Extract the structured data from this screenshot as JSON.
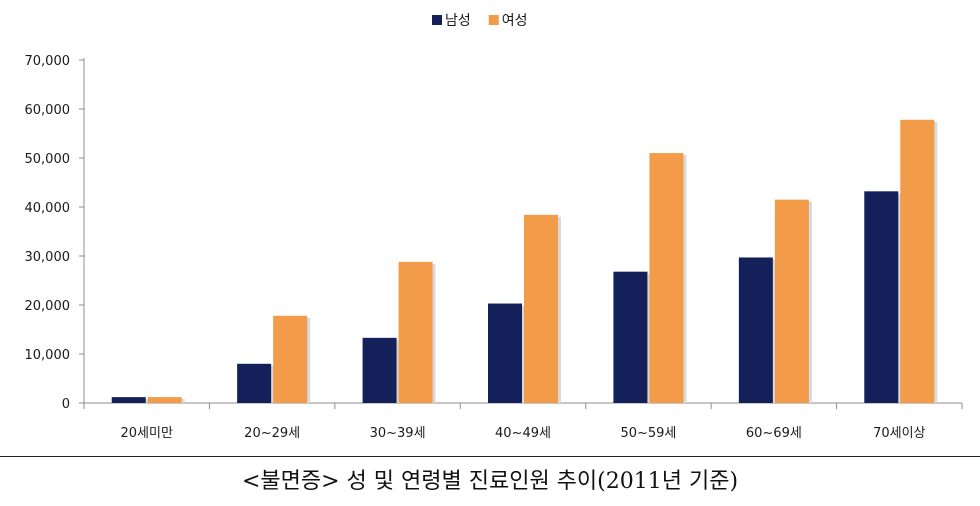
{
  "chart_data": {
    "type": "bar",
    "categories": [
      "20세미만",
      "20~29세",
      "30~39세",
      "40~49세",
      "50~59세",
      "60~69세",
      "70세이상"
    ],
    "series": [
      {
        "name": "남성",
        "values": [
          1200,
          8000,
          13300,
          20300,
          26800,
          29700,
          43200
        ]
      },
      {
        "name": "여성",
        "values": [
          1200,
          17800,
          28800,
          38400,
          51000,
          41500,
          57800
        ]
      }
    ],
    "yticks": [
      "0",
      "10,000",
      "20,000",
      "30,000",
      "40,000",
      "50,000",
      "60,000",
      "70,000"
    ],
    "ylim": [
      0,
      70000
    ],
    "legend_position": "top-center",
    "grid": false,
    "colors": {
      "남성": "#14205a",
      "여성": "#f29b48"
    }
  },
  "caption": "<불면증> 성 및 연령별 진료인원 추이(2011년 기준)"
}
